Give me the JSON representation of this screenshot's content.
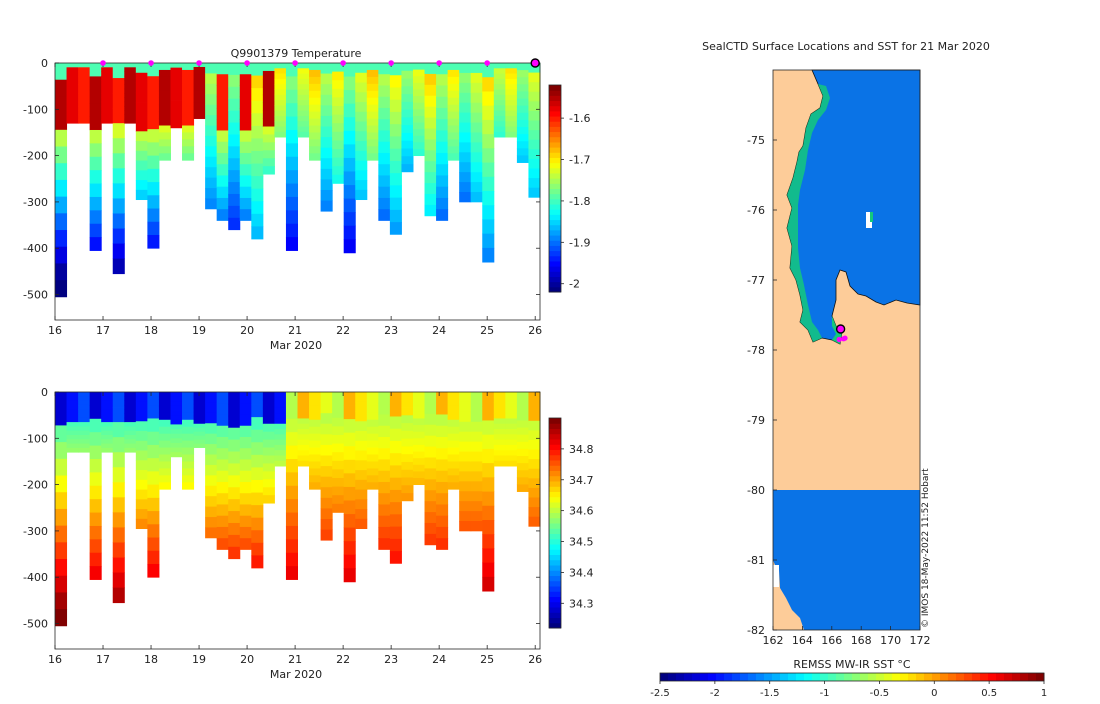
{
  "chart_data": [
    {
      "type": "heatmap",
      "title": "Q9901379  Temperature",
      "xlabel": "Mar 2020",
      "ylabel": "",
      "x_ticks": [
        "16",
        "17",
        "18",
        "19",
        "20",
        "21",
        "22",
        "23",
        "24",
        "25",
        "26"
      ],
      "xlim": [
        16,
        26.1
      ],
      "y_ticks": [
        "0",
        "-100",
        "-200",
        "-300",
        "-400",
        "-500"
      ],
      "ylim": [
        -555,
        0
      ],
      "colorbar": {
        "ticks": [
          "-1.6",
          "-1.7",
          "-1.8",
          "-1.9",
          "-2"
        ],
        "range": [
          -2.02,
          -1.52
        ]
      },
      "surface_markers_day": [
        17,
        18,
        19,
        20,
        21,
        22,
        23,
        24,
        25
      ],
      "profile_depths": [
        505,
        130,
        130,
        405,
        130,
        455,
        130,
        295,
        400,
        210,
        140,
        210,
        120,
        315,
        340,
        360,
        340,
        380,
        240,
        160,
        405,
        160,
        210,
        320,
        260,
        410,
        295,
        210,
        340,
        370,
        235,
        200,
        330,
        340,
        210,
        300,
        300,
        430,
        160,
        160,
        215,
        290
      ],
      "notes": "Warm (about -1.55) upper layer to about 150 m on 16-20 Mar, cooling to about -1.8 at depth"
    },
    {
      "type": "heatmap",
      "title": "",
      "xlabel": "Mar 2020",
      "ylabel": "",
      "x_ticks": [
        "16",
        "17",
        "18",
        "19",
        "20",
        "21",
        "22",
        "23",
        "24",
        "25",
        "26"
      ],
      "xlim": [
        16,
        26.1
      ],
      "y_ticks": [
        "0",
        "-100",
        "-200",
        "-300",
        "-400",
        "-500"
      ],
      "ylim": [
        -555,
        0
      ],
      "colorbar": {
        "ticks": [
          "34.8",
          "34.7",
          "34.6",
          "34.5",
          "34.4",
          "34.3"
        ],
        "range": [
          34.22,
          34.9
        ]
      },
      "notes": "Fresher surface (about 34.3) increasing to about 34.75 at depth"
    },
    {
      "type": "heatmap",
      "title": "SealCTD Surface Locations and SST for 21 Mar 2020",
      "x_ticks": [
        "162",
        "164",
        "166",
        "168",
        "170",
        "172"
      ],
      "xlim": [
        162,
        172
      ],
      "y_ticks": [
        "-75",
        "-76",
        "-77",
        "-78",
        "-79",
        "-80",
        "-81",
        "-82"
      ],
      "ylim": [
        -82,
        -74
      ],
      "colorbar_label": "REMSS MW-IR SST °C",
      "colorbar_ticks": [
        "-2.5",
        "-2",
        "-1.5",
        "-1",
        "-0.5",
        "0",
        "0.5",
        "1"
      ],
      "colorbar_range": [
        -2.5,
        1
      ],
      "credit": "© IMOS 18-May-2022 11:52 Hobart",
      "sst_open_water": -1.8,
      "seal_surface_locations": [
        [
          166.6,
          -77.7
        ],
        [
          166.5,
          -77.85
        ],
        [
          166.8,
          -77.84
        ],
        [
          166.9,
          -77.83
        ]
      ]
    }
  ]
}
